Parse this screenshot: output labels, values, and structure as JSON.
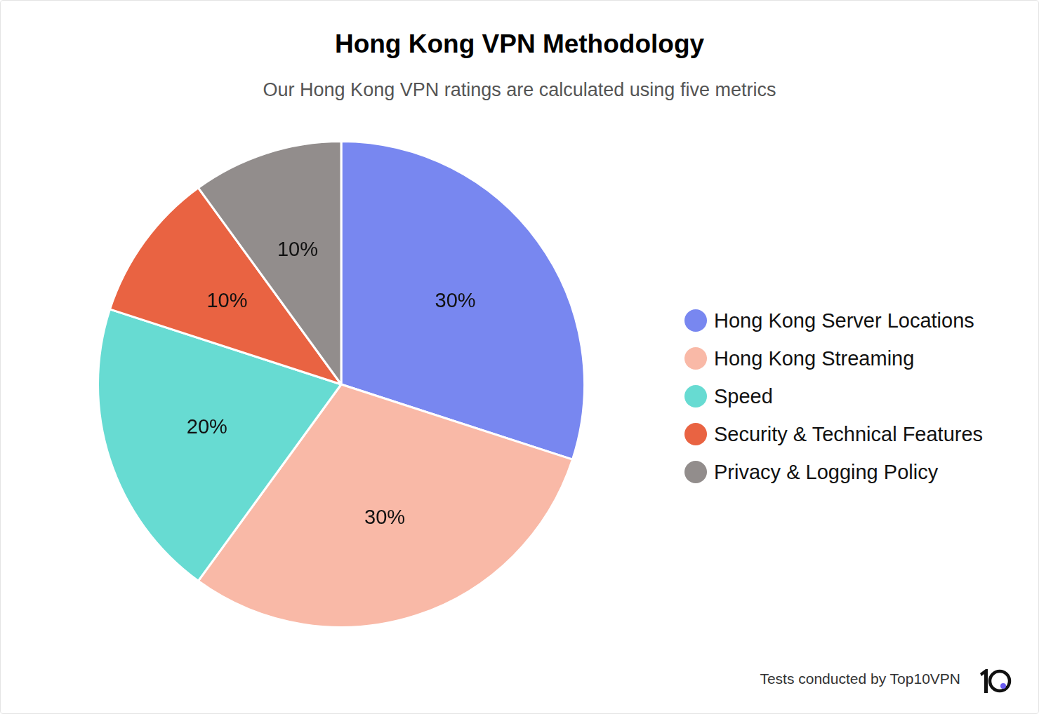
{
  "chart_data": {
    "type": "pie",
    "title": "Hong Kong VPN Methodology",
    "subtitle": "Our Hong Kong VPN ratings are calculated using five metrics",
    "categories": [
      "Hong Kong Server Locations",
      "Hong Kong Streaming",
      "Speed",
      "Security & Technical Features",
      "Privacy & Logging Policy"
    ],
    "values": [
      30,
      30,
      20,
      10,
      10
    ],
    "value_labels": [
      "30%",
      "30%",
      "20%",
      "10%",
      "10%"
    ],
    "colors": [
      "#7887f0",
      "#f9b9a7",
      "#67dbd2",
      "#e96342",
      "#928d8c"
    ],
    "data_labels": true,
    "legend": "right"
  },
  "footer": "Tests conducted by Top10VPN"
}
